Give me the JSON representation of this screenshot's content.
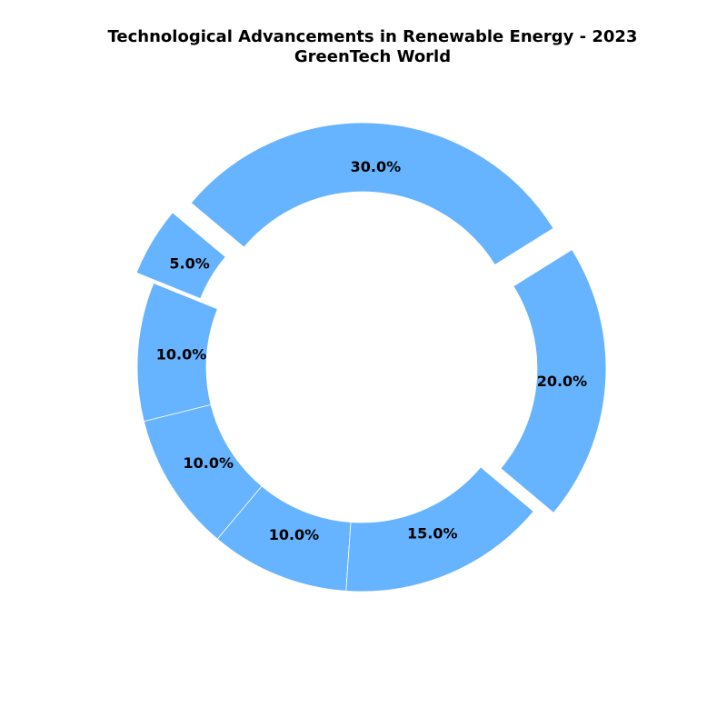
{
  "chart_data": {
    "type": "pie",
    "style": "donut",
    "title_lines": [
      "Technological Advancements in Renewable Energy - 2023",
      "GreenTech World"
    ],
    "categories": [
      "",
      "",
      "",
      "",
      "",
      "",
      ""
    ],
    "values": [
      5,
      10,
      10,
      10,
      15,
      20,
      30
    ],
    "labels": [
      "5.0%",
      "10.0%",
      "10.0%",
      "10.0%",
      "15.0%",
      "20.0%",
      "30.0%"
    ],
    "exploded": [
      true,
      false,
      false,
      false,
      false,
      true,
      true
    ],
    "slice_color": "#66b3ff",
    "edge_color": "#ffffff",
    "legend": "none"
  }
}
